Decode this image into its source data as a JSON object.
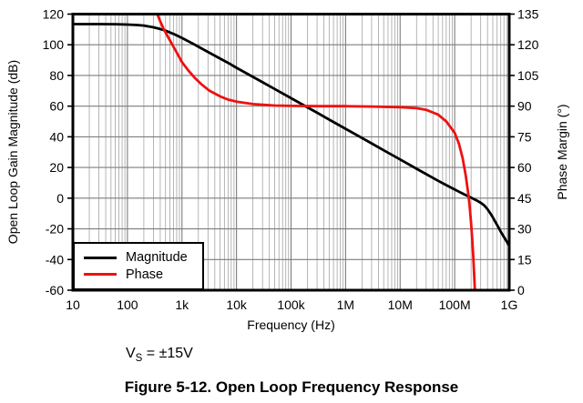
{
  "figure": {
    "caption": "Figure 5-12. Open Loop Frequency Response",
    "annotation": {
      "prefix": "V",
      "sub": "S",
      "rest": " = ±15V"
    }
  },
  "colors": {
    "magnitude": "#000000",
    "phase": "#ee1111",
    "grid_minor": "#a3a3a3",
    "grid_major": "#7d7d7d",
    "frame": "#000000",
    "background": "#ffffff"
  },
  "chart_data": {
    "type": "line",
    "title": "",
    "xlabel": "Frequency (Hz)",
    "ylabel_left": "Open Loop Gain Magnitude (dB)",
    "ylabel_right": "Phase Margin (°)",
    "x_scale": "log",
    "xlim": [
      10,
      1000000000
    ],
    "ylim_left": [
      -60,
      120
    ],
    "ylim_right": [
      0,
      135
    ],
    "grid": "log minor+major vertical, 20 dB major horizontal",
    "x_ticks": [
      {
        "v": 10,
        "label": "10"
      },
      {
        "v": 100,
        "label": "100"
      },
      {
        "v": 1000,
        "label": "1k"
      },
      {
        "v": 10000,
        "label": "10k"
      },
      {
        "v": 100000,
        "label": "100k"
      },
      {
        "v": 1000000,
        "label": "1M"
      },
      {
        "v": 10000000,
        "label": "10M"
      },
      {
        "v": 100000000,
        "label": "100M"
      },
      {
        "v": 1000000000,
        "label": "1G"
      }
    ],
    "y_left_ticks": [
      120,
      100,
      80,
      60,
      40,
      20,
      0,
      -20,
      -40,
      -60
    ],
    "y_right_ticks": [
      135,
      120,
      105,
      90,
      75,
      60,
      45,
      30,
      15,
      0
    ],
    "legend": {
      "position": "lower-left",
      "entries": [
        {
          "label": "Magnitude",
          "color": "#000000"
        },
        {
          "label": "Phase",
          "color": "#ee1111"
        }
      ]
    },
    "series": [
      {
        "name": "Magnitude",
        "axis": "left",
        "color": "#000000",
        "points": [
          [
            10,
            113.5
          ],
          [
            30,
            113.5
          ],
          [
            60,
            113.4
          ],
          [
            100,
            113.2
          ],
          [
            150,
            112.9
          ],
          [
            200,
            112.5
          ],
          [
            300,
            111.4
          ],
          [
            400,
            110.3
          ],
          [
            500,
            109.2
          ],
          [
            700,
            107.1
          ],
          [
            1000,
            104.4
          ],
          [
            1500,
            101.2
          ],
          [
            2000,
            98.7
          ],
          [
            3000,
            95.3
          ],
          [
            5000,
            91.0
          ],
          [
            7000,
            88.2
          ],
          [
            10000,
            85.0
          ],
          [
            20000,
            79.1
          ],
          [
            30000,
            75.6
          ],
          [
            50000,
            71.2
          ],
          [
            100000,
            65.2
          ],
          [
            200000,
            59.2
          ],
          [
            300000,
            55.7
          ],
          [
            500000,
            51.2
          ],
          [
            1000000,
            45.2
          ],
          [
            2000000,
            39.2
          ],
          [
            3000000,
            35.7
          ],
          [
            5000000,
            31.2
          ],
          [
            10000000,
            25.2
          ],
          [
            20000000,
            19.2
          ],
          [
            30000000,
            15.7
          ],
          [
            50000000,
            11.3
          ],
          [
            70000000,
            8.5
          ],
          [
            100000000,
            5.7
          ],
          [
            130000000,
            3.6
          ],
          [
            160000000,
            2.0
          ],
          [
            200000000,
            0.3
          ],
          [
            250000000,
            -1.4
          ],
          [
            300000000,
            -3.0
          ],
          [
            350000000,
            -4.8
          ],
          [
            400000000,
            -7.2
          ],
          [
            450000000,
            -9.8
          ],
          [
            500000000,
            -12.5
          ],
          [
            600000000,
            -17.5
          ],
          [
            700000000,
            -21.8
          ],
          [
            800000000,
            -25.3
          ],
          [
            900000000,
            -28.3
          ],
          [
            1000000000,
            -31
          ]
        ]
      },
      {
        "name": "Phase",
        "axis": "right",
        "color": "#ee1111",
        "points": [
          [
            290,
            143
          ],
          [
            320,
            139
          ],
          [
            353,
            135
          ],
          [
            400,
            131.5
          ],
          [
            456,
            128
          ],
          [
            550,
            124
          ],
          [
            700,
            119
          ],
          [
            850,
            115
          ],
          [
            1000,
            111.5
          ],
          [
            1300,
            107.5
          ],
          [
            1700,
            104
          ],
          [
            2200,
            101
          ],
          [
            3200,
            97.5
          ],
          [
            5000,
            94.8
          ],
          [
            7000,
            93.2
          ],
          [
            10000,
            92.2
          ],
          [
            20000,
            91.0
          ],
          [
            50000,
            90.3
          ],
          [
            100000,
            90.1
          ],
          [
            300000,
            90
          ],
          [
            1000000,
            90
          ],
          [
            3000000,
            89.8
          ],
          [
            10000000,
            89.5
          ],
          [
            20000000,
            89.0
          ],
          [
            30000000,
            88.2
          ],
          [
            50000000,
            85.8
          ],
          [
            70000000,
            82.5
          ],
          [
            100000000,
            77
          ],
          [
            120000000,
            71.5
          ],
          [
            140000000,
            64.5
          ],
          [
            160000000,
            56
          ],
          [
            180000000,
            46
          ],
          [
            190000000,
            40
          ],
          [
            200000000,
            33
          ],
          [
            210000000,
            25
          ],
          [
            220000000,
            16
          ],
          [
            230000000,
            5
          ],
          [
            237000000,
            -3
          ]
        ]
      }
    ]
  }
}
